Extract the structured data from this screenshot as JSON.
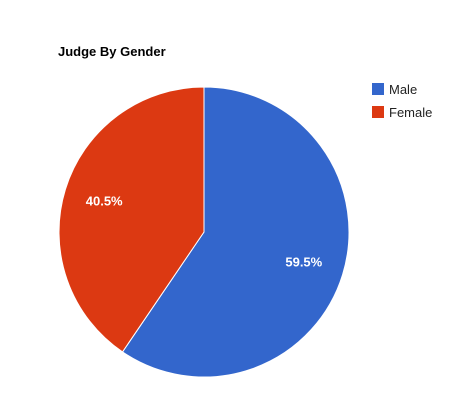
{
  "chart_data": {
    "type": "pie",
    "title": "Judge By Gender",
    "legend_position": "right",
    "slices": [
      {
        "label": "Male",
        "value": 59.5,
        "value_label": "59.5%",
        "color": "#3366cc"
      },
      {
        "label": "Female",
        "value": 40.5,
        "value_label": "40.5%",
        "color": "#dc3912"
      }
    ]
  }
}
